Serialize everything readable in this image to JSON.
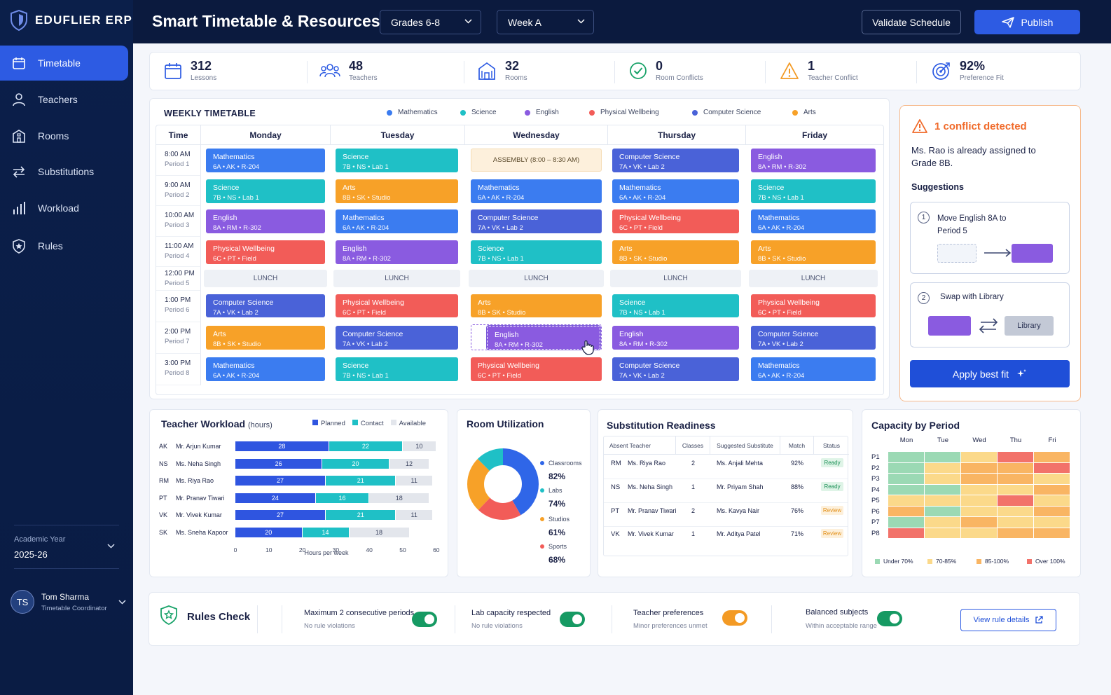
{
  "app": {
    "name": "EDUFLIER ERP"
  },
  "sidebar": {
    "items": [
      {
        "label": "Timetable",
        "icon": "calendar-icon"
      },
      {
        "label": "Teachers",
        "icon": "user-icon"
      },
      {
        "label": "Rooms",
        "icon": "building-icon"
      },
      {
        "label": "Substitutions",
        "icon": "swap-icon"
      },
      {
        "label": "Workload",
        "icon": "bar-chart-icon"
      },
      {
        "label": "Rules",
        "icon": "shield-icon"
      }
    ],
    "academic_year_label": "Academic Year",
    "academic_year": "2025-26",
    "user": {
      "initials": "TS",
      "name": "Tom Sharma",
      "role": "Timetable Coordinator"
    }
  },
  "header": {
    "title": "Smart Timetable & Resources",
    "grade_select": "Grades 6-8",
    "week_select": "Week A",
    "validate_label": "Validate Schedule",
    "publish_label": "Publish"
  },
  "stats": [
    {
      "value": "312",
      "label": "Lessons",
      "icon": "calendar-icon"
    },
    {
      "value": "48",
      "label": "Teachers",
      "icon": "users-icon"
    },
    {
      "value": "32",
      "label": "Rooms",
      "icon": "building-icon"
    },
    {
      "value": "0",
      "label": "Room Conflicts",
      "icon": "check-circle-icon"
    },
    {
      "value": "1",
      "label": "Teacher Conflict",
      "icon": "warning-icon"
    },
    {
      "value": "92%",
      "label": "Preference Fit",
      "icon": "target-icon"
    }
  ],
  "timetable": {
    "title": "WEEKLY TIMETABLE",
    "legend": [
      {
        "label": "Mathematics",
        "color": "#3b7cf0"
      },
      {
        "label": "Science",
        "color": "#1fc0c6"
      },
      {
        "label": "English",
        "color": "#8a5be0"
      },
      {
        "label": "Physical Wellbeing",
        "color": "#f25c58"
      },
      {
        "label": "Computer Science",
        "color": "#4a62d8"
      },
      {
        "label": "Arts",
        "color": "#f7a128"
      }
    ],
    "time_header": "Time",
    "days": [
      "Monday",
      "Tuesday",
      "Wednesday",
      "Thursday",
      "Friday"
    ],
    "periods": [
      {
        "time": "8:00 AM",
        "period": "Period 1"
      },
      {
        "time": "9:00 AM",
        "period": "Period 2"
      },
      {
        "time": "10:00 AM",
        "period": "Period 3"
      },
      {
        "time": "11:00 AM",
        "period": "Period 4"
      },
      {
        "time": "12:00 PM",
        "period": "Period 5"
      },
      {
        "time": "1:00 PM",
        "period": "Period 6"
      },
      {
        "time": "2:00 PM",
        "period": "Period 7"
      },
      {
        "time": "3:00 PM",
        "period": "Period 8"
      }
    ],
    "lunch_label": "LUNCH",
    "assembly_label": "ASSEMBLY (8:00 – 8:30 AM)",
    "lessons": [
      [
        {
          "subject": "Mathematics",
          "detail": "6A • AK • R-204"
        },
        {
          "subject": "Science",
          "detail": "7B • NS • Lab 1"
        },
        {
          "subject": "English",
          "detail": "8A • RM • R-302"
        },
        {
          "subject": "Physical Wellbeing",
          "detail": "6C • PT • Field"
        },
        {
          "subject": "Computer Science",
          "detail": "7A • VK • Lab 2"
        },
        {
          "subject": "Arts",
          "detail": "8B • SK • Studio"
        },
        {
          "subject": "Mathematics",
          "detail": "6A • AK • R-204"
        }
      ],
      [
        {
          "subject": "Science",
          "detail": "7B • NS • Lab 1"
        },
        {
          "subject": "Arts",
          "detail": "8B • SK • Studio"
        },
        {
          "subject": "Mathematics",
          "detail": "6A • AK • R-204"
        },
        {
          "subject": "English",
          "detail": "8A • RM • R-302"
        },
        {
          "subject": "Physical Wellbeing",
          "detail": "6C • PT • Field"
        },
        {
          "subject": "Computer Science",
          "detail": "7A • VK • Lab 2"
        },
        {
          "subject": "Science",
          "detail": "7B • NS • Lab 1"
        }
      ],
      [
        {
          "subject": "Mathematics",
          "detail": "6A • AK • R-204"
        },
        {
          "subject": "Computer Science",
          "detail": "7A • VK • Lab 2"
        },
        {
          "subject": "Science",
          "detail": "7B • NS • Lab 1"
        },
        {
          "subject": "Arts",
          "detail": "8B • SK • Studio"
        },
        {
          "subject": "English",
          "detail": "8A • RM • R-302"
        },
        {
          "subject": "Physical Wellbeing",
          "detail": "6C • PT • Field"
        }
      ],
      [
        {
          "subject": "Computer Science",
          "detail": "7A • VK • Lab 2"
        },
        {
          "subject": "Mathematics",
          "detail": "6A • AK • R-204"
        },
        {
          "subject": "Physical Wellbeing",
          "detail": "6C • PT • Field"
        },
        {
          "subject": "Arts",
          "detail": "8B • SK • Studio"
        },
        {
          "subject": "Science",
          "detail": "7B • NS • Lab 1"
        },
        {
          "subject": "English",
          "detail": "8A • RM • R-302"
        },
        {
          "subject": "Computer Science",
          "detail": "7A • VK • Lab 2"
        }
      ],
      [
        {
          "subject": "English",
          "detail": "8A • RM • R-302"
        },
        {
          "subject": "Science",
          "detail": "7B • NS • Lab 1"
        },
        {
          "subject": "Mathematics",
          "detail": "6A • AK • R-204"
        },
        {
          "subject": "Arts",
          "detail": "8B • SK • Studio"
        },
        {
          "subject": "Physical Wellbeing",
          "detail": "6C • PT • Field"
        },
        {
          "subject": "Computer Science",
          "detail": "7A • VK • Lab 2"
        },
        {
          "subject": "Mathematics",
          "detail": "6A • AK • R-204"
        }
      ]
    ]
  },
  "conflict": {
    "title": "1 conflict detected",
    "message": "Ms. Rao is already assigned to Grade 8B.",
    "suggestions_label": "Suggestions",
    "suggestions": [
      {
        "num": "1",
        "text": "Move English 8A to Period 5"
      },
      {
        "num": "2",
        "text": "Swap with Library",
        "target": "Library"
      }
    ],
    "apply_label": "Apply best fit"
  },
  "workload": {
    "title": "Teacher Workload",
    "unit": "(hours)",
    "legend": [
      "Planned",
      "Contact",
      "Available"
    ],
    "axis_label": "Hours per week",
    "ticks": [
      "0",
      "10",
      "20",
      "30",
      "40",
      "50",
      "60"
    ],
    "teachers": [
      {
        "code": "AK",
        "name": "Mr. Arjun Kumar",
        "planned": 28,
        "contact": 22,
        "available": 10
      },
      {
        "code": "NS",
        "name": "Ms. Neha Singh",
        "planned": 26,
        "contact": 20,
        "available": 12
      },
      {
        "code": "RM",
        "name": "Ms. Riya Rao",
        "planned": 27,
        "contact": 21,
        "available": 11
      },
      {
        "code": "PT",
        "name": "Mr. Pranav Tiwari",
        "planned": 24,
        "contact": 16,
        "available": 18
      },
      {
        "code": "VK",
        "name": "Mr. Vivek Kumar",
        "planned": 27,
        "contact": 21,
        "available": 11
      },
      {
        "code": "SK",
        "name": "Ms. Sneha Kapoor",
        "planned": 20,
        "contact": 14,
        "available": 18
      }
    ]
  },
  "room_util": {
    "title": "Room Utilization",
    "items": [
      {
        "label": "Classrooms",
        "value": "82%",
        "color": "#2f66e8"
      },
      {
        "label": "Labs",
        "value": "74%",
        "color": "#1fc0c6"
      },
      {
        "label": "Studios",
        "value": "61%",
        "color": "#f7a128"
      },
      {
        "label": "Sports",
        "value": "68%",
        "color": "#f25c58"
      }
    ]
  },
  "substitution": {
    "title": "Substitution Readiness",
    "headers": [
      "Absent Teacher",
      "Classes",
      "Suggested Substitute",
      "Match",
      "Status"
    ],
    "rows": [
      {
        "code": "RM",
        "teacher": "Ms. Riya Rao",
        "classes": "2",
        "substitute": "Ms. Anjali Mehta",
        "match": "92%",
        "status": "Ready"
      },
      {
        "code": "NS",
        "teacher": "Ms. Neha Singh",
        "classes": "1",
        "substitute": "Mr. Priyam Shah",
        "match": "88%",
        "status": "Ready"
      },
      {
        "code": "PT",
        "teacher": "Mr. Pranav Tiwari",
        "classes": "2",
        "substitute": "Ms. Kavya Nair",
        "match": "76%",
        "status": "Review"
      },
      {
        "code": "VK",
        "teacher": "Mr. Vivek Kumar",
        "classes": "1",
        "substitute": "Mr. Aditya Patel",
        "match": "71%",
        "status": "Review"
      }
    ]
  },
  "capacity": {
    "title": "Capacity by Period",
    "days": [
      "Mon",
      "Tue",
      "Wed",
      "Thu",
      "Fri"
    ],
    "periods": [
      "P1",
      "P2",
      "P3",
      "P4",
      "P5",
      "P6",
      "P7",
      "P8"
    ],
    "legend": [
      {
        "label": "Under 70%",
        "color": "#9bd9b4"
      },
      {
        "label": "70-85%",
        "color": "#fbd98a"
      },
      {
        "label": "85-100%",
        "color": "#f9b563"
      },
      {
        "label": "Over 100%",
        "color": "#f2726a"
      }
    ],
    "levels": [
      [
        0,
        0,
        1,
        3,
        2
      ],
      [
        0,
        1,
        2,
        2,
        3
      ],
      [
        0,
        1,
        2,
        2,
        1
      ],
      [
        0,
        0,
        1,
        1,
        2
      ],
      [
        1,
        1,
        1,
        3,
        1
      ],
      [
        2,
        0,
        1,
        1,
        2
      ],
      [
        0,
        1,
        2,
        1,
        1
      ],
      [
        3,
        1,
        1,
        2,
        2
      ]
    ]
  },
  "rules": {
    "title": "Rules Check",
    "items": [
      {
        "title": "Maximum 2 consecutive periods",
        "sub": "No rule violations",
        "state": "on"
      },
      {
        "title": "Lab capacity respected",
        "sub": "No rule violations",
        "state": "on"
      },
      {
        "title": "Teacher preferences",
        "sub": "Minor preferences unmet",
        "state": "warn"
      },
      {
        "title": "Balanced subjects",
        "sub": "Within acceptable range",
        "state": "on"
      }
    ],
    "view_label": "View rule details"
  }
}
